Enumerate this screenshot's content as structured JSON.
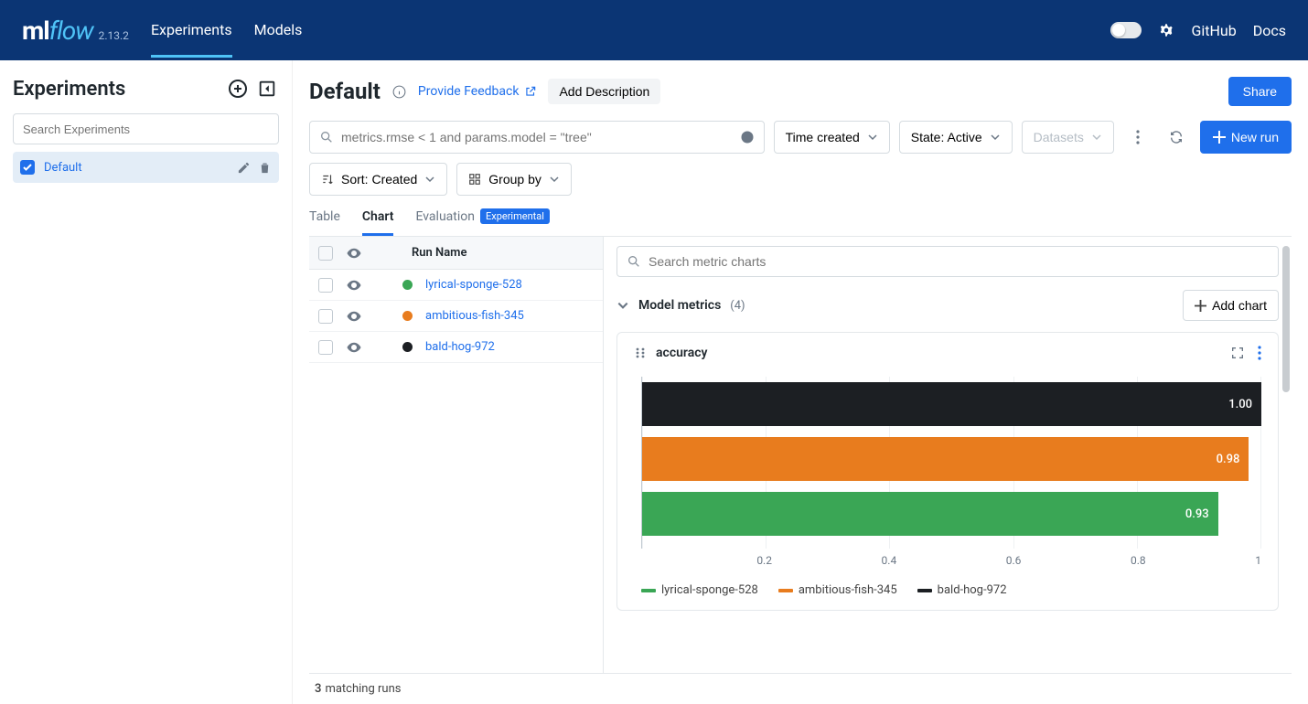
{
  "brand": {
    "prefix": "ml",
    "suffix": "flow",
    "version": "2.13.2"
  },
  "nav": {
    "experiments": "Experiments",
    "models": "Models",
    "github": "GitHub",
    "docs": "Docs"
  },
  "sidebar": {
    "title": "Experiments",
    "search_placeholder": "Search Experiments",
    "items": [
      {
        "name": "Default"
      }
    ]
  },
  "page": {
    "title": "Default",
    "feedback": "Provide Feedback",
    "add_description": "Add Description",
    "share": "Share"
  },
  "filters": {
    "query_placeholder": "metrics.rmse < 1 and params.model = \"tree\"",
    "time": "Time created",
    "state": "State: Active",
    "datasets": "Datasets",
    "newrun": "New run",
    "sort": "Sort: Created",
    "groupby": "Group by"
  },
  "tabs": {
    "table": "Table",
    "chart": "Chart",
    "evaluation": "Evaluation",
    "badge": "Experimental"
  },
  "runs": {
    "header": "Run Name",
    "rows": [
      {
        "name": "lyrical-sponge-528",
        "color": "#3aa655"
      },
      {
        "name": "ambitious-fish-345",
        "color": "#e87c1e"
      },
      {
        "name": "bald-hog-972",
        "color": "#1c1f23"
      }
    ],
    "matching_count": "3",
    "matching_label": "matching runs"
  },
  "charts": {
    "search_placeholder": "Search metric charts",
    "section_title": "Model metrics",
    "section_count": "(4)",
    "add_chart": "Add chart"
  },
  "accuracy_chart": {
    "type": "bar-horizontal",
    "title": "accuracy",
    "xlim": [
      0,
      1
    ],
    "xticks": [
      "0.2",
      "0.4",
      "0.6",
      "0.8",
      "1"
    ],
    "bars": [
      {
        "label": "bald-hog-972",
        "value": 1.0,
        "display": "1.00",
        "color": "#1c1f23"
      },
      {
        "label": "ambitious-fish-345",
        "value": 0.98,
        "display": "0.98",
        "color": "#e87c1e"
      },
      {
        "label": "lyrical-sponge-528",
        "value": 0.93,
        "display": "0.93",
        "color": "#3aa655"
      }
    ],
    "legend_order": [
      {
        "label": "lyrical-sponge-528",
        "color": "#3aa655"
      },
      {
        "label": "ambitious-fish-345",
        "color": "#e87c1e"
      },
      {
        "label": "bald-hog-972",
        "color": "#1c1f23"
      }
    ],
    "grid_color": "#eef1f3",
    "axis_color": "#c2cad1",
    "background_color": "#ffffff"
  }
}
